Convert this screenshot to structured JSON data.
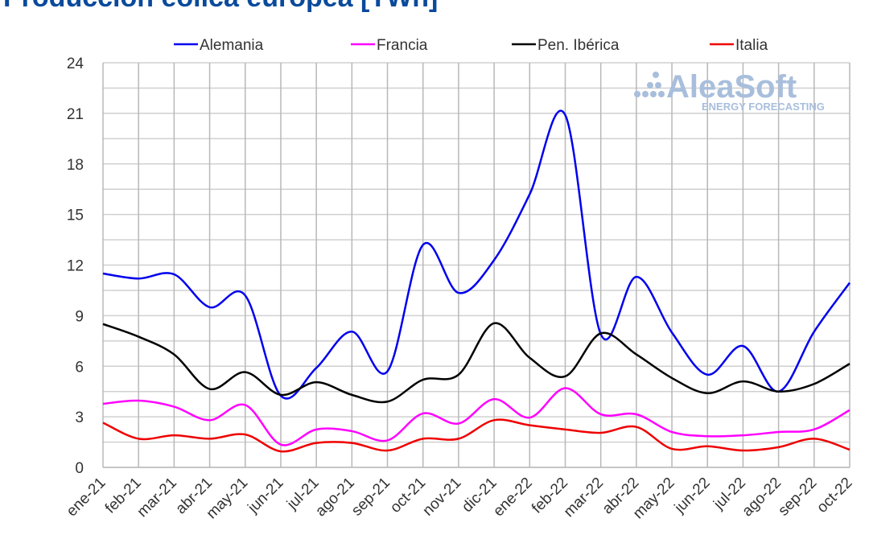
{
  "chart_data": {
    "type": "line",
    "title": "Producción eólica europea [TWh]",
    "xlabel": "",
    "ylabel": "",
    "ylim": [
      0,
      24
    ],
    "yticks": [
      0,
      3,
      6,
      9,
      12,
      15,
      18,
      21,
      24
    ],
    "grid": true,
    "legend_position": "top",
    "categories": [
      "ene-21",
      "feb-21",
      "mar-21",
      "abr-21",
      "may-21",
      "jun-21",
      "jul-21",
      "ago-21",
      "sep-21",
      "oct-21",
      "nov-21",
      "dic-21",
      "ene-22",
      "feb-22",
      "mar-22",
      "abr-22",
      "may-22",
      "jun-22",
      "jul-22",
      "ago-22",
      "sep-22",
      "oct-22"
    ],
    "series": [
      {
        "name": "Alemania",
        "color": "#0000ee",
        "values": [
          11.5,
          11.2,
          11.45,
          9.5,
          10.2,
          4.25,
          5.9,
          8.05,
          5.7,
          13.2,
          10.35,
          12.3,
          16.2,
          20.9,
          7.9,
          11.3,
          8.0,
          5.5,
          7.2,
          4.5,
          8.05,
          10.95
        ]
      },
      {
        "name": "Francia",
        "color": "#ff00ff",
        "values": [
          3.77,
          3.96,
          3.6,
          2.8,
          3.7,
          1.35,
          2.25,
          2.15,
          1.6,
          3.2,
          2.6,
          4.05,
          2.95,
          4.7,
          3.15,
          3.15,
          2.1,
          1.85,
          1.9,
          2.1,
          2.25,
          3.4
        ]
      },
      {
        "name": "Pen. Ibérica",
        "color": "#000000",
        "values": [
          8.5,
          7.75,
          6.7,
          4.65,
          5.65,
          4.3,
          5.05,
          4.3,
          3.9,
          5.2,
          5.5,
          8.55,
          6.5,
          5.4,
          7.95,
          6.7,
          5.3,
          4.4,
          5.1,
          4.5,
          4.95,
          6.15
        ]
      },
      {
        "name": "Italia",
        "color": "#ee0000",
        "values": [
          2.65,
          1.7,
          1.9,
          1.7,
          1.95,
          0.95,
          1.45,
          1.45,
          1.0,
          1.7,
          1.7,
          2.8,
          2.5,
          2.25,
          2.05,
          2.4,
          1.1,
          1.25,
          1.0,
          1.2,
          1.7,
          1.05
        ]
      }
    ]
  },
  "watermark": {
    "brand": "AleaSoft",
    "tagline": "ENERGY FORECASTING"
  }
}
